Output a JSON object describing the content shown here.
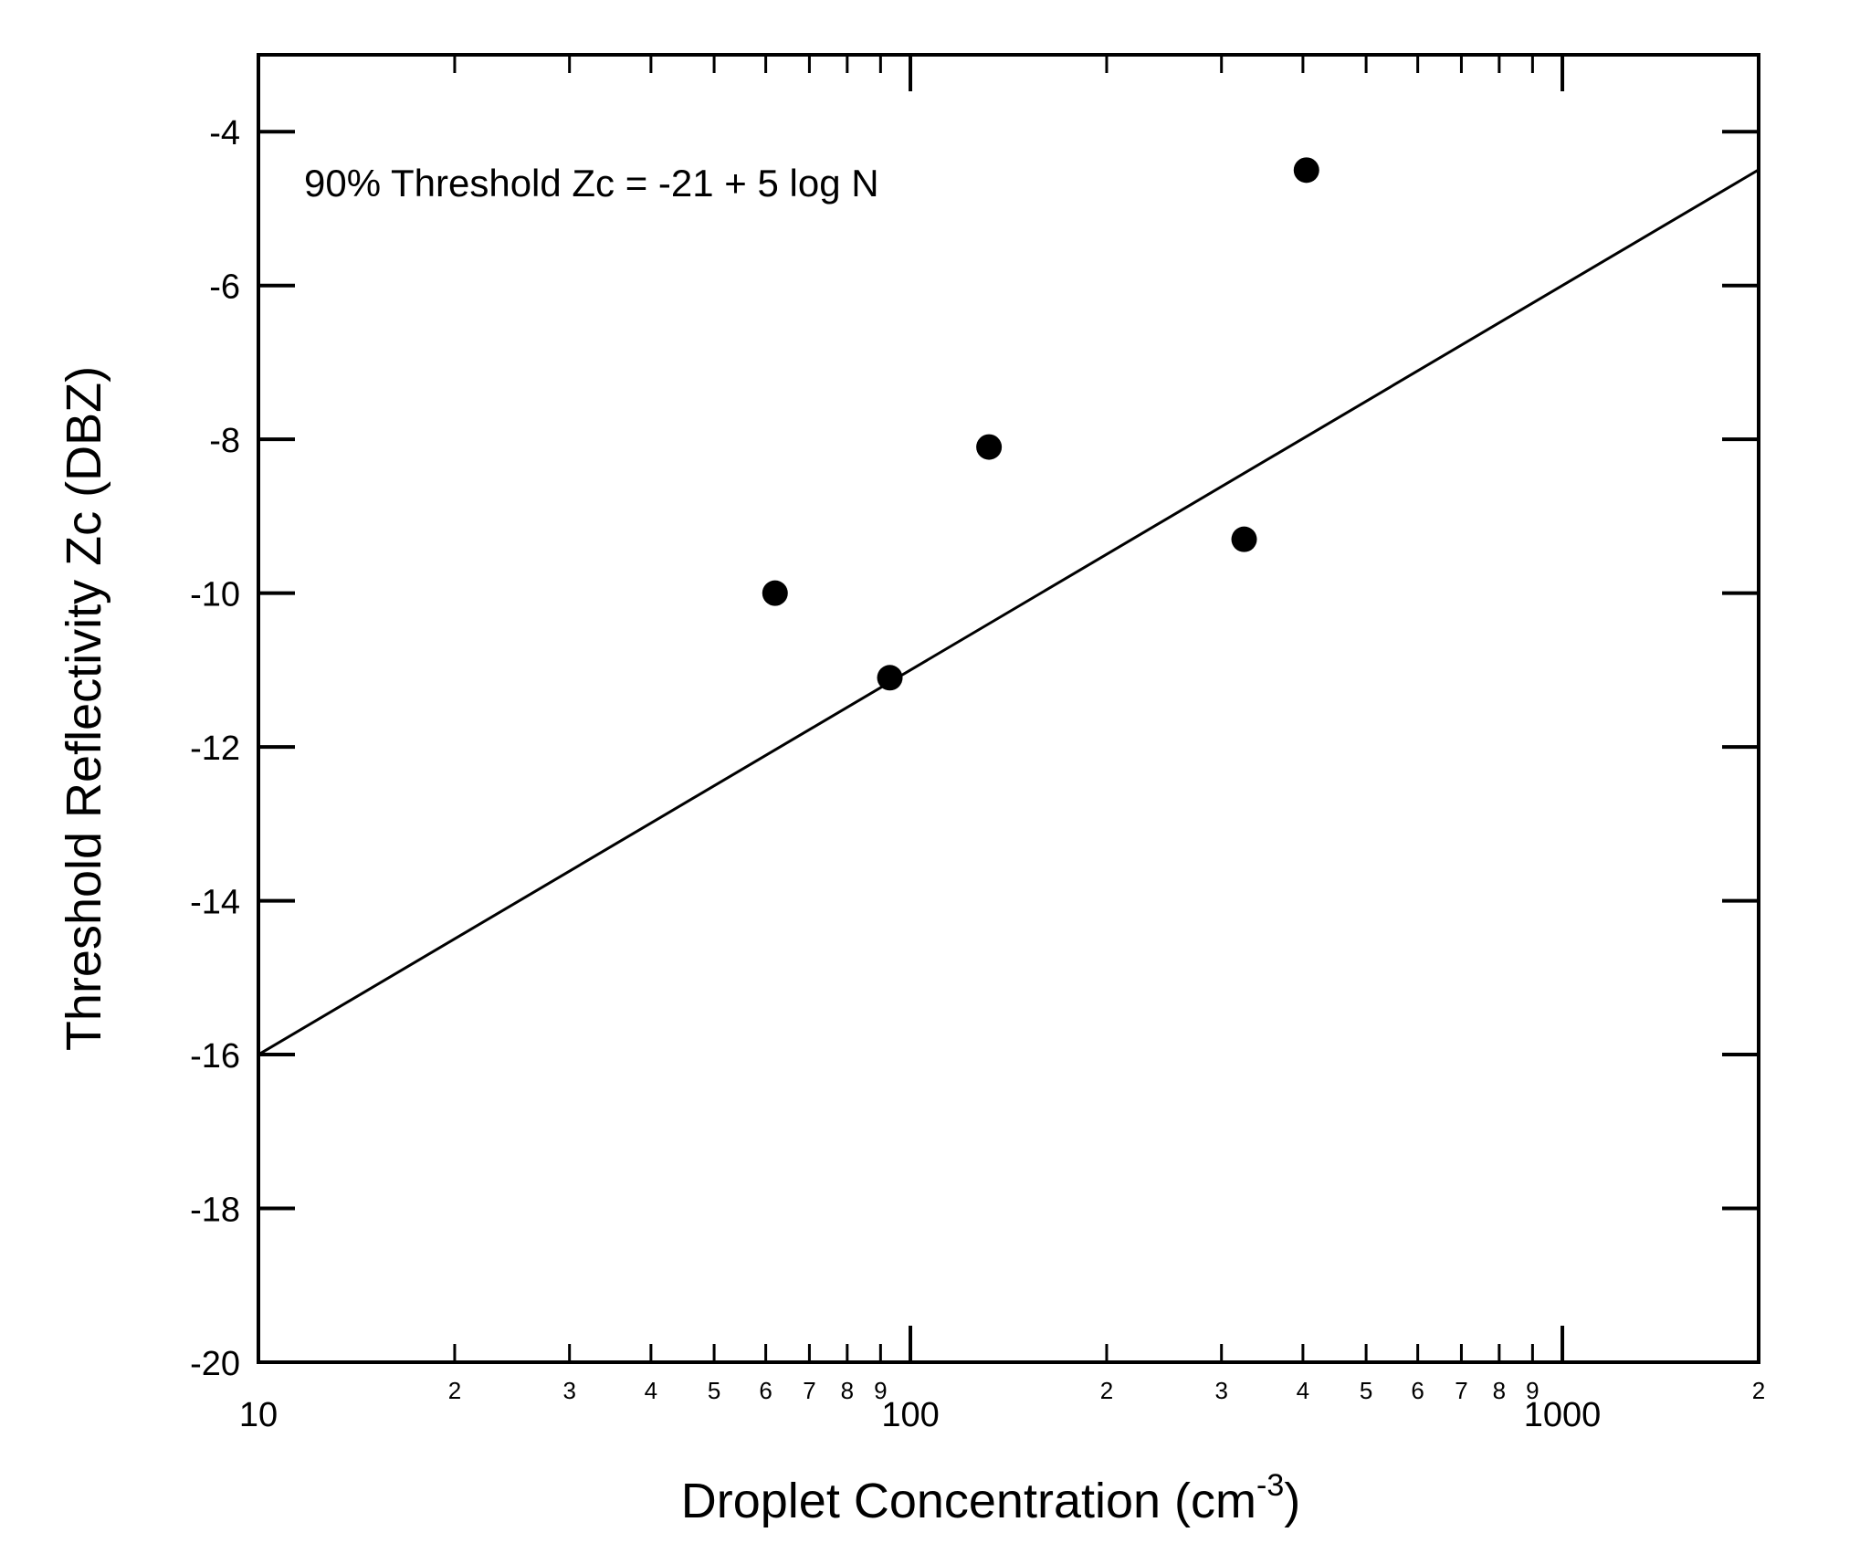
{
  "chart_data": {
    "type": "scatter",
    "title": "",
    "xlabel": "Droplet Concentration (cm",
    "xlabel_superscript": "-3",
    "xlabel_close": ")",
    "ylabel": "Threshold Reflectivity Zc (DBZ)",
    "xscale": "log",
    "xlim": [
      10,
      2000
    ],
    "ylim": [
      -20,
      -3
    ],
    "x_major_ticks": [
      {
        "value": 10,
        "label": "10"
      },
      {
        "value": 100,
        "label": "100"
      },
      {
        "value": 1000,
        "label": "1000"
      }
    ],
    "x_minor_ticks": [
      {
        "value": 20,
        "label": "2"
      },
      {
        "value": 30,
        "label": "3"
      },
      {
        "value": 40,
        "label": "4"
      },
      {
        "value": 50,
        "label": "5"
      },
      {
        "value": 60,
        "label": "6"
      },
      {
        "value": 70,
        "label": "7"
      },
      {
        "value": 80,
        "label": "8"
      },
      {
        "value": 90,
        "label": "9"
      },
      {
        "value": 200,
        "label": "2"
      },
      {
        "value": 300,
        "label": "3"
      },
      {
        "value": 400,
        "label": "4"
      },
      {
        "value": 500,
        "label": "5"
      },
      {
        "value": 600,
        "label": "6"
      },
      {
        "value": 700,
        "label": "7"
      },
      {
        "value": 800,
        "label": "8"
      },
      {
        "value": 900,
        "label": "9"
      },
      {
        "value": 2000,
        "label": "2"
      }
    ],
    "y_ticks": [
      {
        "value": -4,
        "label": "-4"
      },
      {
        "value": -6,
        "label": "-6"
      },
      {
        "value": -8,
        "label": "-8"
      },
      {
        "value": -10,
        "label": "-10"
      },
      {
        "value": -12,
        "label": "-12"
      },
      {
        "value": -14,
        "label": "-14"
      },
      {
        "value": -16,
        "label": "-16"
      },
      {
        "value": -18,
        "label": "-18"
      },
      {
        "value": -20,
        "label": "-20"
      }
    ],
    "points": [
      {
        "x": 62,
        "y": -10.0
      },
      {
        "x": 93,
        "y": -11.1
      },
      {
        "x": 132,
        "y": -8.1
      },
      {
        "x": 325,
        "y": -9.3
      },
      {
        "x": 405,
        "y": -4.5
      }
    ],
    "fit_line": {
      "equation": "Zc = -21 + 5 log N",
      "intercept": -21,
      "slope": 5
    },
    "annotation": "90% Threshold Zc = -21 + 5 log N",
    "grid": false,
    "legend": "none"
  }
}
